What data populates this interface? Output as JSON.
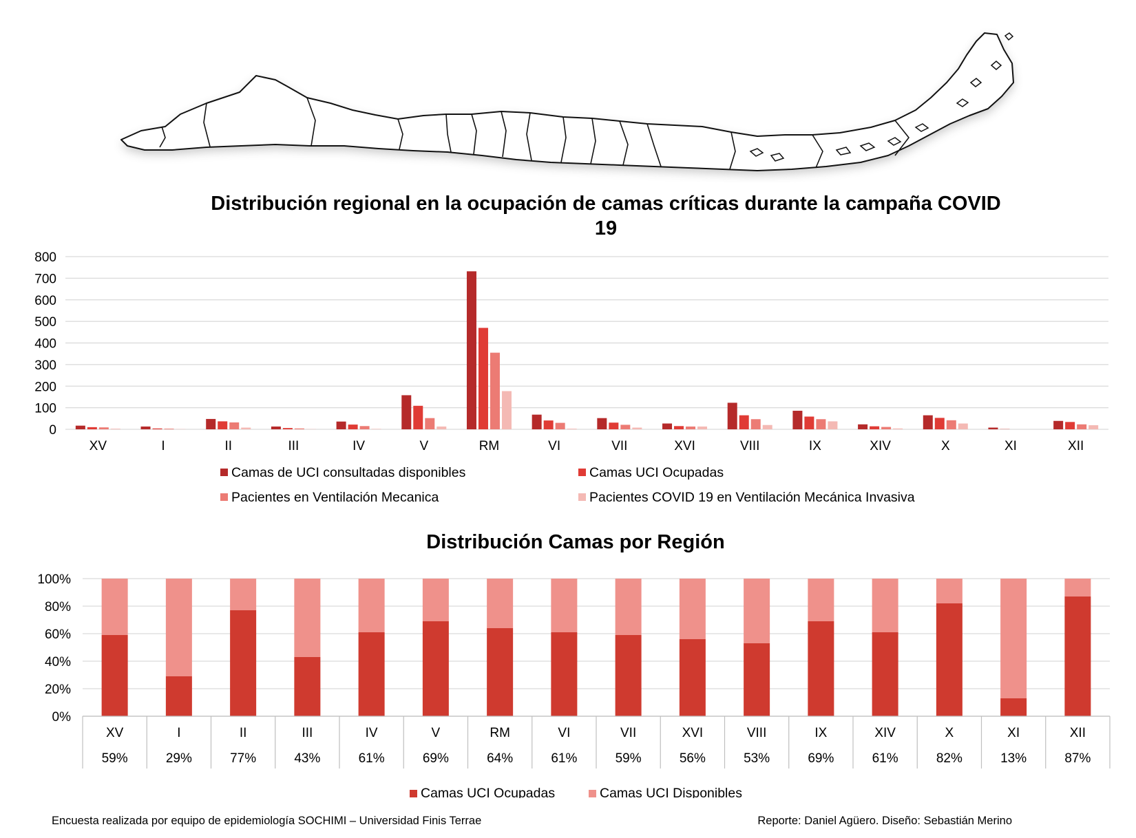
{
  "colors": {
    "series1": "#b52a2a",
    "series2": "#e03b35",
    "series3": "#ec7b74",
    "series4": "#f4b9b4",
    "occupied": "#cf3a2f",
    "available": "#ef918b",
    "grid": "#d9d9d9"
  },
  "map": {
    "icon": "chile-map-icon"
  },
  "chart_data": [
    {
      "type": "bar",
      "title": "Distribución regional en la ocupación de camas críticas durante la campaña COVID 19",
      "title_lines": [
        "Distribución regional en la ocupación de camas críticas durante la campaña COVID",
        "19"
      ],
      "categories": [
        "XV",
        "I",
        "II",
        "III",
        "IV",
        "V",
        "RM",
        "VI",
        "VII",
        "XVI",
        "VIII",
        "IX",
        "XIV",
        "X",
        "XI",
        "XII"
      ],
      "ylim": [
        0,
        800
      ],
      "yticks": [
        0,
        100,
        200,
        300,
        400,
        500,
        600,
        700,
        800
      ],
      "ytick_labels": [
        "0",
        "100",
        "200",
        "300",
        "400",
        "500",
        "600",
        "700",
        "800"
      ],
      "grid": true,
      "legend_position": "bottom",
      "series": [
        {
          "name": "Camas de UCI consultadas disponibles",
          "values": [
            17,
            13,
            48,
            13,
            36,
            158,
            732,
            68,
            52,
            27,
            123,
            86,
            23,
            65,
            8,
            39
          ]
        },
        {
          "name": "Camas UCI Ocupadas",
          "values": [
            10,
            4,
            37,
            6,
            22,
            109,
            470,
            41,
            31,
            15,
            65,
            59,
            14,
            53,
            1,
            34
          ]
        },
        {
          "name": "Pacientes en Ventilación Mecanica",
          "values": [
            9,
            3,
            32,
            4,
            15,
            52,
            355,
            30,
            21,
            13,
            47,
            47,
            11,
            42,
            0,
            23
          ]
        },
        {
          "name": "Pacientes COVID 19 en Ventilación Mecánica Invasiva",
          "values": [
            3,
            1,
            8,
            1,
            2,
            13,
            177,
            3,
            8,
            13,
            20,
            37,
            4,
            27,
            0,
            19
          ]
        }
      ]
    },
    {
      "type": "bar",
      "stacked": true,
      "title": "Distribución Camas por Región",
      "categories": [
        "XV",
        "I",
        "II",
        "III",
        "IV",
        "V",
        "RM",
        "VI",
        "VII",
        "XVI",
        "VIII",
        "IX",
        "XIV",
        "X",
        "XI",
        "XII"
      ],
      "ylim": [
        0,
        100
      ],
      "yticks": [
        0,
        20,
        40,
        60,
        80,
        100
      ],
      "ytick_labels": [
        "0%",
        "20%",
        "40%",
        "60%",
        "80%",
        "100%"
      ],
      "grid": true,
      "legend_position": "bottom",
      "data_table_labels": [
        "59%",
        "29%",
        "77%",
        "43%",
        "61%",
        "69%",
        "64%",
        "61%",
        "59%",
        "56%",
        "53%",
        "69%",
        "61%",
        "82%",
        "13%",
        "87%"
      ],
      "series": [
        {
          "name": "Camas UCI Ocupadas",
          "values": [
            59,
            29,
            77,
            43,
            61,
            69,
            64,
            61,
            59,
            56,
            53,
            69,
            61,
            82,
            13,
            87
          ]
        },
        {
          "name": "Camas UCI Disponibles",
          "values": [
            41,
            71,
            23,
            57,
            39,
            31,
            36,
            39,
            41,
            44,
            47,
            31,
            39,
            18,
            87,
            13
          ]
        }
      ]
    }
  ],
  "footer": {
    "left": "Encuesta realizada por equipo de epidemiología SOCHIMI – Universidad Finis Terrae",
    "right": "Reporte: Daniel Agüero. Diseño: Sebastián Merino"
  }
}
